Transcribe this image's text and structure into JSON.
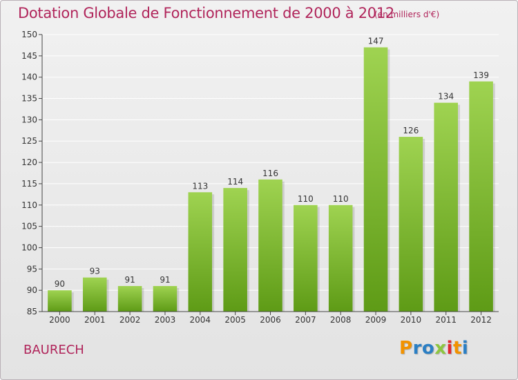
{
  "header": {
    "title": "Dotation Globale de Fonctionnement de 2000 à 2012",
    "unit": "(en milliers d'€)"
  },
  "footer": {
    "commune": "BAURECH",
    "logo_letters": [
      "P",
      "r",
      "o",
      "x",
      "i",
      "t",
      "i"
    ],
    "logo_colors": [
      "#f29200",
      "#2b7fc4",
      "#2b7fc4",
      "#8dc63f",
      "#e2262f",
      "#f29200",
      "#2b7fc4"
    ]
  },
  "colors": {
    "title": "#b0245a",
    "bar_top": "#9fd351",
    "bar_bottom": "#5e9b16",
    "axis": "#444444",
    "grid": "#ffffff"
  },
  "chart_data": {
    "type": "bar",
    "title": "Dotation Globale de Fonctionnement de 2000 à 2012",
    "subtitle": "(en milliers d'€)",
    "categories": [
      "2000",
      "2001",
      "2002",
      "2003",
      "2004",
      "2005",
      "2006",
      "2007",
      "2008",
      "2009",
      "2010",
      "2011",
      "2012"
    ],
    "values": [
      90,
      93,
      91,
      91,
      113,
      114,
      116,
      110,
      110,
      147,
      126,
      134,
      139
    ],
    "ylim": [
      85,
      150
    ],
    "yticks": [
      85,
      90,
      95,
      100,
      105,
      110,
      115,
      120,
      125,
      130,
      135,
      140,
      145,
      150
    ],
    "grid": true,
    "data_labels": true,
    "legend": "none"
  }
}
